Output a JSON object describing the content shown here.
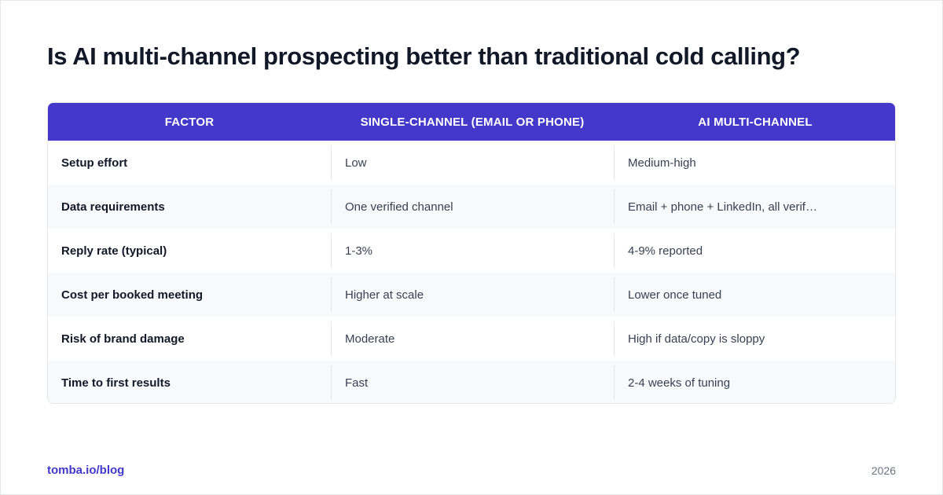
{
  "title": "Is AI multi-channel prospecting better than traditional cold calling?",
  "table": {
    "headers": [
      "FACTOR",
      "SINGLE-CHANNEL (EMAIL OR PHONE)",
      "AI MULTI-CHANNEL"
    ],
    "rows": [
      [
        "Setup effort",
        "Low",
        "Medium-high"
      ],
      [
        "Data requirements",
        "One verified channel",
        "Email + phone + LinkedIn, all verif…"
      ],
      [
        "Reply rate (typical)",
        "1-3%",
        "4-9% reported"
      ],
      [
        "Cost per booked meeting",
        "Higher at scale",
        "Lower once tuned"
      ],
      [
        "Risk of brand damage",
        "Moderate",
        "High if data/copy is sloppy"
      ],
      [
        "Time to first results",
        "Fast",
        "2-4 weeks of tuning"
      ]
    ]
  },
  "footer": {
    "source": "tomba.io/blog",
    "year": "2026"
  },
  "colors": {
    "header_bg": "#4338ca",
    "accent": "#4338ca",
    "alt_row_bg": "#f8f9fb",
    "title_text": "#111827"
  }
}
